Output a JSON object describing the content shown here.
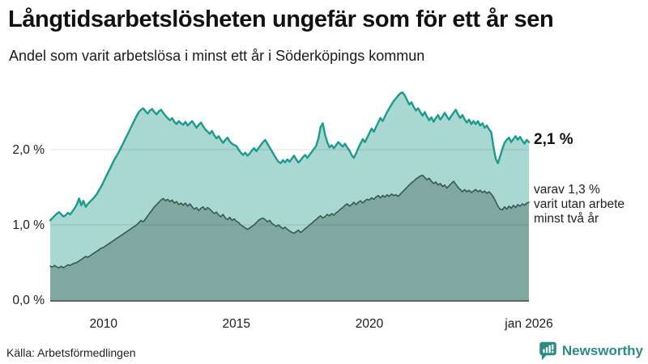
{
  "header": {
    "title": "Långtidsarbetslösheten ungefär som för ett år sen",
    "subtitle": "Andel som varit arbetslösa i minst ett år i Söderköpings kommun"
  },
  "annotations": {
    "total_label": "2,1 %",
    "two_years_lines": [
      "varav 1,3 %",
      "varit utan arbete",
      "minst två år"
    ]
  },
  "footer": {
    "source": "Källa: Arbetsförmedlingen",
    "brand": "Newsworthy"
  },
  "colors": {
    "background": "#ffffff",
    "accent_teal_line": "#1a9b8e",
    "light_fill": "#a9d8d2",
    "dark_fill": "#7fa8a1",
    "dark_line": "#3a5751",
    "gridline_black_alpha": 0.12,
    "baseline": "#2e2e2e",
    "axis_text": "#1c1c1c",
    "brand_teal": "#2b8c86",
    "title_text": "#111111"
  },
  "chart_data": {
    "type": "area",
    "title": "Långtidsarbetslösheten ungefär som för ett år sen",
    "subtitle": "Andel som varit arbetslösa i minst ett år i Söderköpings kommun",
    "xlabel": "",
    "ylabel": "",
    "ylim": [
      0,
      2.9
    ],
    "x_range": [
      2008.0,
      2026.0
    ],
    "x_step_months": 1,
    "grid": "horizontal",
    "legend_position": "none",
    "y_ticks": [
      {
        "label": "0,0 %",
        "value": 0
      },
      {
        "label": "1,0 %",
        "value": 1
      },
      {
        "label": "2,0 %",
        "value": 2
      }
    ],
    "x_ticks": [
      {
        "label": "2010",
        "value": 2010
      },
      {
        "label": "2015",
        "value": 2015
      },
      {
        "label": "2020",
        "value": 2020
      },
      {
        "label": "jan 2026",
        "value": 2026
      }
    ],
    "series": [
      {
        "id": "total",
        "end_value_label": "2,1 %",
        "line_color": "#1a9b8e",
        "fill_color": "#a9d8d2",
        "line_width": 2.4,
        "values": [
          1.06,
          1.09,
          1.12,
          1.15,
          1.17,
          1.14,
          1.11,
          1.13,
          1.16,
          1.14,
          1.18,
          1.22,
          1.27,
          1.35,
          1.26,
          1.32,
          1.24,
          1.28,
          1.31,
          1.34,
          1.37,
          1.41,
          1.46,
          1.51,
          1.57,
          1.63,
          1.69,
          1.75,
          1.81,
          1.87,
          1.92,
          1.97,
          2.03,
          2.09,
          2.15,
          2.21,
          2.27,
          2.33,
          2.39,
          2.45,
          2.5,
          2.53,
          2.55,
          2.51,
          2.48,
          2.52,
          2.54,
          2.5,
          2.47,
          2.51,
          2.53,
          2.49,
          2.45,
          2.42,
          2.39,
          2.42,
          2.37,
          2.34,
          2.38,
          2.35,
          2.33,
          2.37,
          2.32,
          2.35,
          2.38,
          2.34,
          2.29,
          2.33,
          2.36,
          2.31,
          2.27,
          2.24,
          2.21,
          2.25,
          2.19,
          2.15,
          2.18,
          2.13,
          2.09,
          2.13,
          2.16,
          2.11,
          2.08,
          2.06,
          2.05,
          2.0,
          1.96,
          1.93,
          1.96,
          1.92,
          1.95,
          1.99,
          2.02,
          1.98,
          2.02,
          2.06,
          2.1,
          2.13,
          2.08,
          2.03,
          1.98,
          1.93,
          1.88,
          1.84,
          1.82,
          1.86,
          1.83,
          1.87,
          1.84,
          1.88,
          1.92,
          1.87,
          1.83,
          1.86,
          1.9,
          1.93,
          1.89,
          1.93,
          1.97,
          2.01,
          2.05,
          2.15,
          2.3,
          2.35,
          2.2,
          2.1,
          2.03,
          2.06,
          2.02,
          2.06,
          2.1,
          2.07,
          2.04,
          2.08,
          2.03,
          1.99,
          1.93,
          1.89,
          1.95,
          2.02,
          2.08,
          2.14,
          2.1,
          2.16,
          2.22,
          2.28,
          2.24,
          2.3,
          2.36,
          2.42,
          2.38,
          2.44,
          2.5,
          2.55,
          2.6,
          2.65,
          2.68,
          2.72,
          2.75,
          2.76,
          2.72,
          2.66,
          2.6,
          2.63,
          2.57,
          2.52,
          2.55,
          2.5,
          2.45,
          2.5,
          2.44,
          2.39,
          2.43,
          2.37,
          2.42,
          2.46,
          2.4,
          2.44,
          2.49,
          2.44,
          2.4,
          2.45,
          2.49,
          2.53,
          2.47,
          2.42,
          2.46,
          2.4,
          2.36,
          2.4,
          2.34,
          2.38,
          2.34,
          2.38,
          2.32,
          2.35,
          2.29,
          2.32,
          2.27,
          2.23,
          2.04,
          1.88,
          1.82,
          1.91,
          2.01,
          2.09,
          2.13,
          2.16,
          2.1,
          2.14,
          2.18,
          2.13,
          2.17,
          2.12,
          2.08,
          2.13,
          2.1
        ]
      },
      {
        "id": "two_years",
        "end_value_label": "1,3 %",
        "line_color": "#3a5751",
        "fill_color": "#7fa8a1",
        "line_width": 1.6,
        "values": [
          0.45,
          0.44,
          0.46,
          0.44,
          0.43,
          0.45,
          0.43,
          0.45,
          0.47,
          0.46,
          0.48,
          0.49,
          0.5,
          0.52,
          0.54,
          0.56,
          0.58,
          0.57,
          0.59,
          0.61,
          0.63,
          0.65,
          0.67,
          0.69,
          0.7,
          0.72,
          0.74,
          0.76,
          0.78,
          0.8,
          0.82,
          0.84,
          0.86,
          0.88,
          0.9,
          0.92,
          0.94,
          0.96,
          0.98,
          1.0,
          1.03,
          1.06,
          1.04,
          1.08,
          1.12,
          1.16,
          1.2,
          1.24,
          1.27,
          1.3,
          1.33,
          1.35,
          1.32,
          1.34,
          1.31,
          1.33,
          1.29,
          1.31,
          1.27,
          1.29,
          1.26,
          1.29,
          1.25,
          1.28,
          1.24,
          1.21,
          1.23,
          1.19,
          1.22,
          1.24,
          1.2,
          1.23,
          1.21,
          1.18,
          1.15,
          1.17,
          1.13,
          1.11,
          1.14,
          1.09,
          1.07,
          1.1,
          1.06,
          1.08,
          1.05,
          1.03,
          1.0,
          0.98,
          0.96,
          0.94,
          0.96,
          0.98,
          1.0,
          1.03,
          1.06,
          1.08,
          1.09,
          1.07,
          1.04,
          1.06,
          1.02,
          1.0,
          0.98,
          1.0,
          0.97,
          0.95,
          0.97,
          0.94,
          0.92,
          0.9,
          0.89,
          0.91,
          0.93,
          0.9,
          0.92,
          0.95,
          0.97,
          1.0,
          1.02,
          1.05,
          1.07,
          1.1,
          1.12,
          1.09,
          1.11,
          1.14,
          1.12,
          1.15,
          1.13,
          1.16,
          1.18,
          1.21,
          1.23,
          1.26,
          1.28,
          1.25,
          1.27,
          1.3,
          1.27,
          1.3,
          1.32,
          1.29,
          1.32,
          1.34,
          1.33,
          1.36,
          1.34,
          1.37,
          1.39,
          1.36,
          1.39,
          1.37,
          1.4,
          1.38,
          1.41,
          1.39,
          1.4,
          1.38,
          1.41,
          1.44,
          1.47,
          1.5,
          1.53,
          1.56,
          1.58,
          1.61,
          1.63,
          1.65,
          1.66,
          1.63,
          1.6,
          1.62,
          1.58,
          1.55,
          1.57,
          1.53,
          1.55,
          1.51,
          1.53,
          1.49,
          1.52,
          1.55,
          1.58,
          1.54,
          1.5,
          1.47,
          1.44,
          1.47,
          1.44,
          1.46,
          1.43,
          1.45,
          1.47,
          1.44,
          1.46,
          1.43,
          1.45,
          1.42,
          1.44,
          1.41,
          1.37,
          1.31,
          1.25,
          1.21,
          1.2,
          1.24,
          1.21,
          1.25,
          1.22,
          1.26,
          1.23,
          1.27,
          1.25,
          1.28,
          1.26,
          1.29,
          1.3
        ]
      }
    ]
  }
}
